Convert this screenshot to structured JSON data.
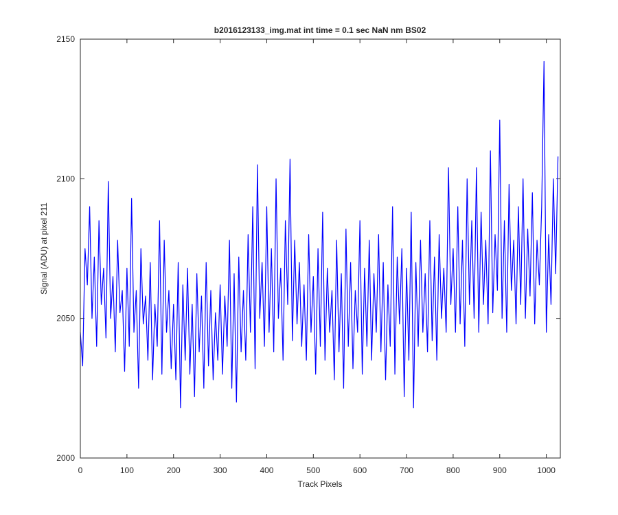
{
  "chart_data": {
    "type": "line",
    "title": "b2016123133_img.mat int time = 0.1 sec  NaN nm BS02",
    "x_label": "Track Pixels",
    "y_label": "Signal (ADU) at pixel 211",
    "color": "#0000ff",
    "x": [
      0,
      5,
      10,
      15,
      20,
      25,
      30,
      35,
      40,
      45,
      50,
      55,
      60,
      65,
      70,
      75,
      80,
      85,
      90,
      95,
      100,
      105,
      110,
      115,
      120,
      125,
      130,
      135,
      140,
      145,
      150,
      155,
      160,
      165,
      170,
      175,
      180,
      185,
      190,
      195,
      200,
      205,
      210,
      215,
      220,
      225,
      230,
      235,
      240,
      245,
      250,
      255,
      260,
      265,
      270,
      275,
      280,
      285,
      290,
      295,
      300,
      305,
      310,
      315,
      320,
      325,
      330,
      335,
      340,
      345,
      350,
      355,
      360,
      365,
      370,
      375,
      380,
      385,
      390,
      395,
      400,
      405,
      410,
      415,
      420,
      425,
      430,
      435,
      440,
      445,
      450,
      455,
      460,
      465,
      470,
      475,
      480,
      485,
      490,
      495,
      500,
      505,
      510,
      515,
      520,
      525,
      530,
      535,
      540,
      545,
      550,
      555,
      560,
      565,
      570,
      575,
      580,
      585,
      590,
      595,
      600,
      605,
      610,
      615,
      620,
      625,
      630,
      635,
      640,
      645,
      650,
      655,
      660,
      665,
      670,
      675,
      680,
      685,
      690,
      695,
      700,
      705,
      710,
      715,
      720,
      725,
      730,
      735,
      740,
      745,
      750,
      755,
      760,
      765,
      770,
      775,
      780,
      785,
      790,
      795,
      800,
      805,
      810,
      815,
      820,
      825,
      830,
      835,
      840,
      845,
      850,
      855,
      860,
      865,
      870,
      875,
      880,
      885,
      890,
      895,
      900,
      905,
      910,
      915,
      920,
      925,
      930,
      935,
      940,
      945,
      950,
      955,
      960,
      965,
      970,
      975,
      980,
      985,
      990,
      995,
      1000,
      1005,
      1010,
      1015,
      1020,
      1025
    ],
    "values": [
      2045,
      2033,
      2075,
      2062,
      2090,
      2050,
      2072,
      2040,
      2085,
      2055,
      2068,
      2043,
      2099,
      2050,
      2065,
      2038,
      2078,
      2052,
      2060,
      2031,
      2068,
      2040,
      2093,
      2045,
      2060,
      2025,
      2075,
      2048,
      2058,
      2035,
      2070,
      2028,
      2055,
      2040,
      2085,
      2030,
      2078,
      2045,
      2060,
      2032,
      2055,
      2028,
      2070,
      2018,
      2062,
      2035,
      2068,
      2030,
      2055,
      2022,
      2066,
      2038,
      2058,
      2025,
      2070,
      2033,
      2060,
      2028,
      2052,
      2035,
      2062,
      2030,
      2058,
      2040,
      2078,
      2025,
      2066,
      2020,
      2072,
      2038,
      2060,
      2035,
      2080,
      2045,
      2090,
      2032,
      2105,
      2050,
      2070,
      2040,
      2090,
      2045,
      2075,
      2038,
      2100,
      2050,
      2068,
      2035,
      2085,
      2055,
      2107,
      2042,
      2078,
      2048,
      2070,
      2040,
      2062,
      2035,
      2080,
      2045,
      2065,
      2030,
      2075,
      2040,
      2088,
      2035,
      2068,
      2045,
      2060,
      2028,
      2078,
      2038,
      2066,
      2025,
      2082,
      2040,
      2070,
      2032,
      2060,
      2045,
      2085,
      2030,
      2068,
      2040,
      2078,
      2035,
      2066,
      2045,
      2080,
      2038,
      2070,
      2028,
      2062,
      2040,
      2090,
      2030,
      2072,
      2048,
      2075,
      2022,
      2068,
      2035,
      2088,
      2018,
      2070,
      2040,
      2078,
      2045,
      2066,
      2038,
      2085,
      2042,
      2072,
      2035,
      2080,
      2050,
      2068,
      2045,
      2104,
      2055,
      2075,
      2045,
      2090,
      2048,
      2078,
      2040,
      2100,
      2055,
      2085,
      2050,
      2104,
      2045,
      2088,
      2055,
      2078,
      2048,
      2110,
      2052,
      2080,
      2060,
      2121,
      2050,
      2085,
      2045,
      2098,
      2060,
      2078,
      2048,
      2090,
      2055,
      2100,
      2050,
      2082,
      2058,
      2095,
      2048,
      2078,
      2062,
      2090,
      2142,
      2045,
      2080,
      2055,
      2100,
      2066,
      2108
    ],
    "xlim": [
      0,
      1030
    ],
    "ylim": [
      2000,
      2150
    ],
    "xticks": [
      0,
      100,
      200,
      300,
      400,
      500,
      600,
      700,
      800,
      900,
      1000
    ],
    "yticks": [
      2000,
      2050,
      2100,
      2150
    ]
  }
}
